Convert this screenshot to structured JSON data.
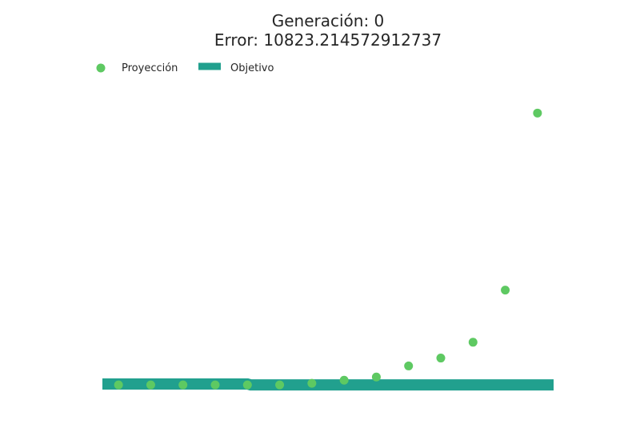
{
  "chart_data": {
    "type": "scatter",
    "title_lines": [
      "Generación: 0",
      "Error: 10823.214572912737"
    ],
    "legend": {
      "placement": "top-left",
      "entries": [
        {
          "label": "Proyección",
          "marker": "circle"
        },
        {
          "label": "Objetivo",
          "marker": "rect"
        }
      ]
    },
    "grid": false,
    "axes_visible": false,
    "xlim": [
      -3.5,
      10.5
    ],
    "ylim": [
      -3,
      100
    ],
    "series": [
      {
        "name": "Proyección",
        "kind": "scatter",
        "color": "#5ec962",
        "x": [
          -3,
          -2,
          -1,
          0,
          1,
          2,
          3,
          4,
          5,
          6,
          7,
          8,
          9,
          10
        ],
        "y": [
          0,
          0,
          0,
          0,
          0,
          0,
          0.5,
          1.5,
          2.5,
          6,
          8.5,
          13.5,
          30,
          86
        ]
      },
      {
        "name": "Objetivo",
        "kind": "line",
        "color": "#21a08e",
        "x": [
          -3.5,
          1,
          1.1,
          10.5
        ],
        "y": [
          0.3,
          0.3,
          0,
          0
        ]
      }
    ]
  }
}
